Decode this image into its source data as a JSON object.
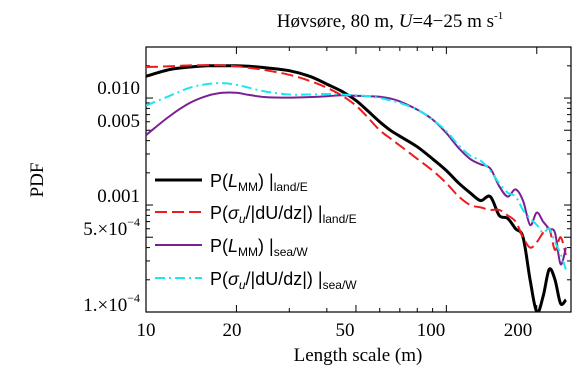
{
  "chart_data": {
    "type": "line",
    "title": "Høvsøre, 80 m, U=4−25 m s⁻¹",
    "title_parts": {
      "prefix": "Høvsøre, 80 m, ",
      "var": "U",
      "range": "=4−25 m s",
      "sup": "-1"
    },
    "xlabel": "Length scale (m)",
    "ylabel": "PDF",
    "xscale": "log",
    "yscale": "log",
    "xlim": [
      10,
      260
    ],
    "ylim": [
      0.0001,
      0.03
    ],
    "x_ticks": [
      10,
      20,
      50,
      100,
      200
    ],
    "x_tick_labels": [
      "10",
      "20",
      "50",
      "100",
      "200"
    ],
    "y_ticks": [
      0.0001,
      0.0005,
      0.001,
      0.005,
      0.01
    ],
    "y_tick_labels": [
      {
        "mant": "1.",
        "times": "×",
        "base": "10",
        "exp": "−4"
      },
      {
        "mant": "5.",
        "times": "×",
        "base": "10",
        "exp": "−4"
      },
      {
        "text": "0.001"
      },
      {
        "text": "0.005"
      },
      {
        "text": "0.010"
      }
    ],
    "grid": false,
    "legend_position": "bottom-left",
    "series": [
      {
        "name": "P(L_MM) |land/E",
        "legend": {
          "pre": "P(",
          "var": "L",
          "sub": "MM",
          "post": ") |",
          "cond": "land/E"
        },
        "color": "#000000",
        "dash": "none",
        "width": 3,
        "x": [
          10,
          12,
          14,
          16,
          18,
          20,
          22,
          25,
          30,
          35,
          40,
          45,
          50,
          55,
          60,
          65,
          70,
          80,
          90,
          100,
          110,
          120,
          130,
          140,
          150,
          160,
          170,
          180,
          190,
          200,
          210,
          220,
          230,
          240,
          250
        ],
        "y": [
          0.016,
          0.0185,
          0.0195,
          0.02,
          0.02,
          0.02,
          0.0198,
          0.0192,
          0.018,
          0.016,
          0.0135,
          0.0115,
          0.0095,
          0.0075,
          0.006,
          0.005,
          0.0044,
          0.0035,
          0.0027,
          0.0021,
          0.0016,
          0.0013,
          0.0011,
          0.0012,
          0.0008,
          0.00075,
          0.0006,
          0.0005,
          0.0002,
          0.0001,
          0.00014,
          0.00025,
          0.0002,
          0.00012,
          0.00013
        ]
      },
      {
        "name": "P(σu/|dU/dz|) |land/E",
        "legend": {
          "pre": "P(",
          "var": "σ",
          "sub": "u",
          "post": "/|dU/dz|) |",
          "cond": "land/E"
        },
        "color": "#ee1c1c",
        "dash": "12,5",
        "width": 2,
        "x": [
          10,
          12,
          14,
          16,
          18,
          20,
          22,
          25,
          30,
          35,
          40,
          45,
          50,
          55,
          60,
          65,
          70,
          80,
          90,
          100,
          110,
          120,
          130,
          140,
          150,
          160,
          170,
          180,
          190,
          200,
          210,
          220,
          230,
          240,
          250
        ],
        "y": [
          0.0195,
          0.0198,
          0.0202,
          0.0203,
          0.0202,
          0.0198,
          0.0192,
          0.0182,
          0.0165,
          0.0145,
          0.0125,
          0.0105,
          0.0085,
          0.0065,
          0.005,
          0.0042,
          0.0036,
          0.0027,
          0.0021,
          0.0016,
          0.0012,
          0.001,
          0.00095,
          0.0009,
          0.0009,
          0.0008,
          0.0007,
          0.0005,
          0.0004,
          0.00045,
          0.00055,
          0.0006,
          0.00038,
          0.0005,
          0.00034
        ]
      },
      {
        "name": "P(L_MM) |sea/W",
        "legend": {
          "pre": "P(",
          "var": "L",
          "sub": "MM",
          "post": ") |",
          "cond": "sea/W"
        },
        "color": "#7a1f94",
        "dash": "none",
        "width": 2,
        "x": [
          10,
          12,
          14,
          16,
          18,
          20,
          22,
          25,
          30,
          35,
          40,
          45,
          50,
          55,
          60,
          65,
          70,
          80,
          90,
          100,
          110,
          120,
          130,
          140,
          150,
          160,
          170,
          180,
          190,
          200,
          210,
          220,
          230,
          240,
          250
        ],
        "y": [
          0.0045,
          0.0068,
          0.009,
          0.0105,
          0.0112,
          0.0112,
          0.0107,
          0.0102,
          0.0101,
          0.0102,
          0.0104,
          0.0106,
          0.0105,
          0.0104,
          0.0103,
          0.0099,
          0.0093,
          0.0078,
          0.0063,
          0.0047,
          0.0034,
          0.0027,
          0.0024,
          0.0022,
          0.0015,
          0.0012,
          0.0014,
          0.0011,
          0.00065,
          0.00085,
          0.0007,
          0.0006,
          0.00055,
          0.00028,
          0.0004
        ]
      },
      {
        "name": "P(σu/|dU/dz|) |sea/W",
        "legend": {
          "pre": "P(",
          "var": "σ",
          "sub": "u",
          "post": "/|dU/dz|) |",
          "cond": "sea/W"
        },
        "color": "#19e8f0",
        "dash": "10,4,2,4",
        "width": 2,
        "x": [
          10,
          12,
          14,
          16,
          18,
          20,
          22,
          25,
          30,
          35,
          40,
          45,
          50,
          55,
          60,
          65,
          70,
          80,
          90,
          100,
          110,
          120,
          130,
          140,
          150,
          160,
          170,
          180,
          190,
          200,
          210,
          220,
          230,
          240,
          250
        ],
        "y": [
          0.0085,
          0.0105,
          0.0125,
          0.0135,
          0.0138,
          0.0133,
          0.0125,
          0.0115,
          0.0108,
          0.0108,
          0.0109,
          0.0108,
          0.0106,
          0.0104,
          0.01,
          0.0095,
          0.009,
          0.0078,
          0.0063,
          0.0049,
          0.0036,
          0.0029,
          0.0026,
          0.0021,
          0.0016,
          0.0013,
          0.0012,
          0.0009,
          0.00075,
          0.00065,
          0.00055,
          0.0006,
          0.00045,
          0.00035,
          0.00025
        ]
      }
    ]
  }
}
